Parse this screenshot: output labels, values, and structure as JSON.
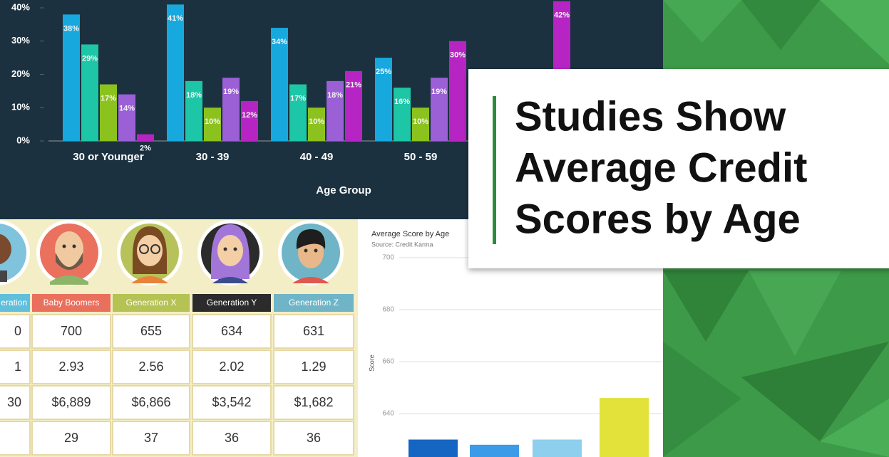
{
  "chart_data": [
    {
      "type": "bar",
      "categories": [
        "30 or Younger",
        "30 - 39",
        "40 - 49",
        "50 - 59",
        null
      ],
      "x_label": "Age Group",
      "ylim": [
        0,
        40
      ],
      "yticks": [
        {
          "value": 0,
          "label": "0%"
        },
        {
          "value": 10,
          "label": "10%"
        },
        {
          "value": 20,
          "label": "20%"
        },
        {
          "value": 30,
          "label": "30%"
        },
        {
          "value": 40,
          "label": "40%"
        }
      ],
      "grid": false,
      "series": [
        {
          "color": "#17a8de",
          "values": [
            38,
            41,
            34,
            25,
            null
          ],
          "value_labels": [
            "38%",
            "41%",
            "34%",
            "25%",
            null
          ]
        },
        {
          "color": "#1cc6a6",
          "values": [
            29,
            18,
            17,
            16,
            null
          ],
          "value_labels": [
            "29%",
            "18%",
            "17%",
            "16%",
            null
          ]
        },
        {
          "color": "#8cc21e",
          "values": [
            17,
            10,
            10,
            10,
            null
          ],
          "value_labels": [
            "17%",
            "10%",
            "10%",
            "10%",
            null
          ]
        },
        {
          "color": "#9b5fd6",
          "values": [
            14,
            19,
            18,
            19,
            null
          ],
          "value_labels": [
            "14%",
            "19%",
            "18%",
            "19%",
            null
          ]
        },
        {
          "color": "#b724c4",
          "values": [
            2,
            12,
            21,
            30,
            42
          ],
          "value_labels": [
            "2%",
            "12%",
            "21%",
            "30%",
            "42%"
          ]
        }
      ]
    },
    {
      "type": "bar",
      "title": "Average Score by Age",
      "subtitle": "Source: Credit Karma",
      "y_label": "Score",
      "categories": [
        null,
        null,
        null,
        null
      ],
      "values": [
        630,
        628,
        630,
        646
      ],
      "colors": [
        "#1466c2",
        "#3b9be8",
        "#8dcfec",
        "#e2e23a"
      ],
      "ylim": [
        623,
        700
      ],
      "yticks": [
        640,
        660,
        680,
        700
      ],
      "grid": true
    }
  ],
  "table": {
    "headers": [
      "eration",
      "Baby Boomers",
      "Generation X",
      "Generation Y",
      "Generation Z"
    ],
    "rows": [
      [
        "0",
        "700",
        "655",
        "634",
        "631"
      ],
      [
        "1",
        "2.93",
        "2.56",
        "2.02",
        "1.29"
      ],
      [
        "30",
        "$6,889",
        "$6,866",
        "$3,542",
        "$1,682"
      ],
      [
        null,
        "29",
        "37",
        "36",
        "36"
      ]
    ]
  },
  "title": {
    "lines": [
      "Studies Show",
      "Average Credit",
      "Scores by Age"
    ]
  }
}
